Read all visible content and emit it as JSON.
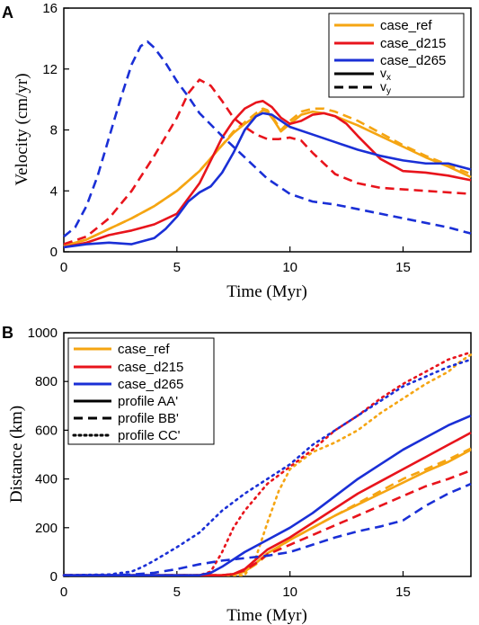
{
  "colors": {
    "case_ref": "#f5a512",
    "case_d215": "#e8141c",
    "case_d265": "#1a2fd6"
  },
  "chart_data": [
    {
      "panel_label": "A",
      "type": "line",
      "xlabel": "Time (Myr)",
      "ylabel": "Velocity (cm/yr)",
      "xlim": [
        0,
        18
      ],
      "ylim": [
        0,
        16
      ],
      "xticks": [
        0,
        5,
        10,
        15
      ],
      "yticks": [
        0,
        4,
        8,
        12,
        16
      ],
      "grid": false,
      "legend_position": "top-right",
      "legend": [
        {
          "label": "case_ref",
          "key": "case_ref",
          "style": "solid"
        },
        {
          "label": "case_d215",
          "key": "case_d215",
          "style": "solid"
        },
        {
          "label": "case_d265",
          "key": "case_d265",
          "style": "solid"
        },
        {
          "label": "v",
          "sub": "x",
          "key": "",
          "style": "solid"
        },
        {
          "label": "v",
          "sub": "y",
          "key": "",
          "style": "dashed"
        }
      ],
      "series": [
        {
          "case": "case_ref",
          "component": "vx",
          "style": "solid",
          "x": [
            0,
            1,
            2,
            3,
            4,
            5,
            6,
            7,
            7.5,
            8,
            8.5,
            8.8,
            9,
            9.3,
            9.6,
            10,
            10.5,
            11,
            11.5,
            12,
            13,
            14,
            15,
            16,
            17,
            18
          ],
          "y": [
            0.4,
            0.8,
            1.5,
            2.2,
            3,
            4,
            5.3,
            7,
            7.8,
            8.4,
            8.9,
            9.3,
            9.2,
            8.6,
            7.9,
            8.4,
            9.0,
            9.2,
            9.1,
            8.9,
            8.3,
            7.6,
            6.9,
            6.2,
            5.6,
            4.9
          ]
        },
        {
          "case": "case_ref",
          "component": "vy",
          "style": "dashed",
          "x": [
            0,
            1,
            2,
            3,
            4,
            5,
            6,
            7,
            7.5,
            8,
            8.5,
            8.8,
            9,
            9.3,
            9.6,
            10,
            10.5,
            11,
            11.5,
            12,
            13,
            14,
            15,
            16,
            17,
            18
          ],
          "y": [
            0.4,
            0.8,
            1.5,
            2.2,
            3,
            4,
            5.3,
            7,
            7.9,
            8.5,
            9.1,
            9.4,
            9.3,
            8.7,
            8.0,
            8.6,
            9.2,
            9.4,
            9.4,
            9.2,
            8.6,
            7.8,
            7.0,
            6.3,
            5.7,
            5.1
          ]
        },
        {
          "case": "case_d215",
          "component": "vx",
          "style": "solid",
          "x": [
            0,
            1,
            2,
            3,
            4,
            5,
            6,
            7,
            7.5,
            8,
            8.5,
            8.8,
            9.2,
            9.6,
            10,
            10.5,
            11,
            11.5,
            12,
            12.5,
            13,
            14,
            15,
            16,
            17,
            18
          ],
          "y": [
            0.3,
            0.6,
            1.1,
            1.4,
            1.8,
            2.5,
            4.5,
            7.5,
            8.6,
            9.4,
            9.8,
            9.9,
            9.5,
            8.8,
            8.4,
            8.6,
            9.0,
            9.1,
            8.9,
            8.4,
            7.6,
            6.1,
            5.3,
            5.2,
            5.0,
            4.7
          ]
        },
        {
          "case": "case_d215",
          "component": "vy",
          "style": "dashed",
          "x": [
            0,
            1,
            2,
            3,
            4,
            5,
            5.5,
            6,
            6.5,
            7,
            7.5,
            8,
            8.5,
            9,
            9.5,
            10,
            10.5,
            11,
            11.5,
            12,
            13,
            14,
            15,
            16,
            17,
            18
          ],
          "y": [
            0.5,
            1.0,
            2.2,
            4.0,
            6.3,
            8.8,
            10.4,
            11.3,
            10.9,
            9.9,
            8.8,
            8.2,
            7.7,
            7.4,
            7.4,
            7.5,
            7.3,
            6.5,
            5.8,
            5.1,
            4.5,
            4.2,
            4.1,
            4.0,
            3.9,
            3.8
          ]
        },
        {
          "case": "case_d265",
          "component": "vx",
          "style": "solid",
          "x": [
            0,
            1,
            2,
            3,
            4,
            4.5,
            5,
            5.5,
            6,
            6.5,
            7,
            7.5,
            8,
            8.5,
            8.8,
            9.2,
            9.6,
            10,
            11,
            12,
            13,
            14,
            15,
            16,
            17,
            18
          ],
          "y": [
            0.3,
            0.5,
            0.6,
            0.5,
            0.9,
            1.5,
            2.3,
            3.3,
            3.9,
            4.3,
            5.2,
            6.5,
            8.0,
            8.9,
            9.1,
            9.0,
            8.6,
            8.2,
            7.7,
            7.2,
            6.7,
            6.3,
            6.0,
            5.8,
            5.8,
            5.4
          ]
        },
        {
          "case": "case_d265",
          "component": "vy",
          "style": "dashed",
          "x": [
            0,
            0.5,
            1,
            1.5,
            2,
            2.5,
            3,
            3.4,
            3.7,
            4,
            4.5,
            5,
            5.5,
            6,
            7,
            8,
            9,
            10,
            11,
            12,
            13,
            14,
            15,
            16,
            17,
            18
          ],
          "y": [
            1.0,
            1.6,
            3.0,
            5.0,
            7.5,
            10.0,
            12.3,
            13.5,
            13.8,
            13.4,
            12.4,
            11.2,
            10.2,
            9.1,
            7.6,
            6.2,
            4.8,
            3.8,
            3.3,
            3.1,
            2.8,
            2.5,
            2.2,
            1.9,
            1.6,
            1.2
          ]
        }
      ]
    },
    {
      "panel_label": "B",
      "type": "line",
      "xlabel": "Time (Myr)",
      "ylabel": "Distance (km)",
      "xlim": [
        0,
        18
      ],
      "ylim": [
        0,
        1000
      ],
      "xticks": [
        0,
        5,
        10,
        15
      ],
      "yticks": [
        0,
        200,
        400,
        600,
        800,
        1000
      ],
      "grid": false,
      "legend_position": "top-left",
      "legend": [
        {
          "label": "case_ref",
          "key": "case_ref",
          "style": "solid"
        },
        {
          "label": "case_d215",
          "key": "case_d215",
          "style": "solid"
        },
        {
          "label": "case_d265",
          "key": "case_d265",
          "style": "solid"
        },
        {
          "label": "profile AA'",
          "key": "",
          "style": "solid"
        },
        {
          "label": "profile BB'",
          "key": "",
          "style": "dashed"
        },
        {
          "label": "profile CC'",
          "key": "",
          "style": "dotted"
        }
      ],
      "series": [
        {
          "case": "case_ref",
          "profile": "AA'",
          "style": "solid",
          "x": [
            0,
            7,
            7.5,
            8,
            8.5,
            9,
            10,
            11,
            12,
            13,
            14,
            15,
            16,
            17,
            18
          ],
          "y": [
            5,
            5,
            8,
            20,
            55,
            95,
            150,
            200,
            250,
            295,
            340,
            385,
            430,
            470,
            520
          ]
        },
        {
          "case": "case_ref",
          "profile": "BB'",
          "style": "dashed",
          "x": [
            0,
            7,
            7.5,
            8,
            8.5,
            9,
            10,
            11,
            12,
            13,
            14,
            15,
            16,
            17,
            18
          ],
          "y": [
            5,
            5,
            8,
            20,
            50,
            90,
            150,
            200,
            250,
            300,
            350,
            400,
            440,
            480,
            525
          ]
        },
        {
          "case": "case_ref",
          "profile": "CC'",
          "style": "dotted",
          "x": [
            0,
            8,
            8.5,
            9,
            9.5,
            10,
            11,
            12,
            13,
            14,
            15,
            16,
            17,
            17.5,
            18
          ],
          "y": [
            5,
            5,
            80,
            220,
            350,
            440,
            510,
            550,
            600,
            670,
            730,
            790,
            840,
            880,
            910
          ]
        },
        {
          "case": "case_d215",
          "profile": "AA'",
          "style": "solid",
          "x": [
            0,
            7,
            7.5,
            8,
            8.5,
            9,
            10,
            11,
            12,
            13,
            14,
            15,
            16,
            17,
            18
          ],
          "y": [
            5,
            5,
            10,
            30,
            70,
            110,
            160,
            220,
            280,
            340,
            390,
            440,
            490,
            540,
            590
          ]
        },
        {
          "case": "case_d215",
          "profile": "BB'",
          "style": "dashed",
          "x": [
            0,
            7,
            7.5,
            8,
            8.5,
            9,
            10,
            11,
            12,
            13,
            14,
            15,
            16,
            17,
            18
          ],
          "y": [
            5,
            5,
            10,
            25,
            55,
            90,
            130,
            170,
            210,
            250,
            290,
            330,
            370,
            400,
            435
          ]
        },
        {
          "case": "case_d215",
          "profile": "CC'",
          "style": "dotted",
          "x": [
            0,
            6,
            6.5,
            7,
            7.5,
            8,
            9,
            10,
            11,
            12,
            13,
            14,
            15,
            16,
            17,
            18
          ],
          "y": [
            5,
            5,
            20,
            100,
            200,
            270,
            380,
            450,
            520,
            600,
            660,
            730,
            790,
            840,
            890,
            920
          ]
        },
        {
          "case": "case_d265",
          "profile": "AA'",
          "style": "solid",
          "x": [
            0,
            6,
            6.5,
            7,
            7.5,
            8,
            9,
            10,
            11,
            12,
            13,
            14,
            15,
            16,
            17,
            18
          ],
          "y": [
            5,
            5,
            15,
            40,
            70,
            100,
            150,
            200,
            260,
            330,
            400,
            460,
            520,
            570,
            620,
            660
          ]
        },
        {
          "case": "case_d265",
          "profile": "BB'",
          "style": "dashed",
          "x": [
            0,
            2,
            3,
            4,
            5,
            6,
            7,
            8,
            9,
            10,
            11,
            12,
            13,
            14,
            15,
            16,
            17,
            18
          ],
          "y": [
            5,
            5,
            8,
            15,
            30,
            50,
            65,
            75,
            85,
            100,
            130,
            160,
            185,
            205,
            230,
            290,
            340,
            380
          ]
        },
        {
          "case": "case_d265",
          "profile": "CC'",
          "style": "dotted",
          "x": [
            0,
            2,
            3,
            3.5,
            4,
            5,
            6,
            7,
            8,
            9,
            10,
            11,
            12,
            13,
            14,
            15,
            16,
            17,
            18
          ],
          "y": [
            5,
            8,
            20,
            40,
            65,
            120,
            180,
            270,
            340,
            400,
            460,
            540,
            600,
            660,
            720,
            780,
            820,
            860,
            890
          ]
        }
      ]
    }
  ]
}
